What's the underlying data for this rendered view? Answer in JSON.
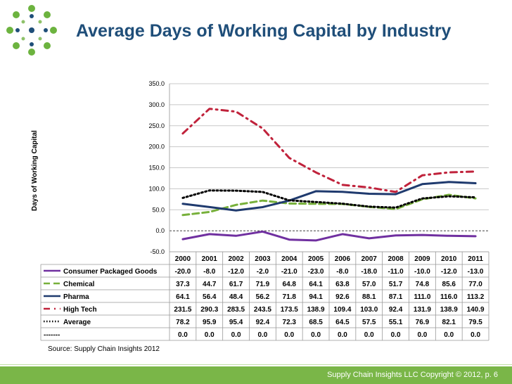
{
  "header": {
    "title": "Average Days of Working Capital by Industry"
  },
  "colors": {
    "title": "#1f4e79",
    "footer_bg": "#7ab648",
    "logo_green": "#6cb33f",
    "logo_blue": "#1f4e79"
  },
  "chart_data": {
    "type": "line",
    "title": "",
    "ylabel": "Days of Working Capital",
    "xlabel": "",
    "ylim": [
      -50,
      350
    ],
    "ytick_labels": [
      "350.0",
      "300.0",
      "250.0",
      "200.0",
      "150.0",
      "100.0",
      "50.0",
      "0.0",
      "-50.0"
    ],
    "grid": true,
    "x": [
      "2000",
      "2001",
      "2002",
      "2003",
      "2004",
      "2005",
      "2006",
      "2007",
      "2008",
      "2009",
      "2010",
      "2011"
    ],
    "series": [
      {
        "name": "Consumer Packaged Goods",
        "color": "#7030a0",
        "dash": "solid",
        "values": [
          -20.0,
          -8.0,
          -12.0,
          -2.0,
          -21.0,
          -23.0,
          -8.0,
          -18.0,
          -11.0,
          -10.0,
          -12.0,
          -13.0
        ],
        "labels": [
          "-20.0",
          "-8.0",
          "-12.0",
          "-2.0",
          "-21.0",
          "-23.0",
          "-8.0",
          "-18.0",
          "-11.0",
          "-10.0",
          "-12.0",
          "-13.0"
        ]
      },
      {
        "name": "Chemical",
        "color": "#77b03a",
        "dash": "dashed",
        "values": [
          37.3,
          44.7,
          61.7,
          71.9,
          64.8,
          64.1,
          63.8,
          57.0,
          51.7,
          74.8,
          85.6,
          77.0
        ],
        "labels": [
          "37.3",
          "44.7",
          "61.7",
          "71.9",
          "64.8",
          "64.1",
          "63.8",
          "57.0",
          "51.7",
          "74.8",
          "85.6",
          "77.0"
        ]
      },
      {
        "name": "Pharma",
        "color": "#1f3a6e",
        "dash": "solid",
        "values": [
          64.1,
          56.4,
          48.4,
          56.2,
          71.8,
          94.1,
          92.6,
          88.1,
          87.1,
          111.0,
          116.0,
          113.2
        ],
        "labels": [
          "64.1",
          "56.4",
          "48.4",
          "56.2",
          "71.8",
          "94.1",
          "92.6",
          "88.1",
          "87.1",
          "111.0",
          "116.0",
          "113.2"
        ]
      },
      {
        "name": "High Tech",
        "color": "#c0223b",
        "dash": "dashdot",
        "values": [
          231.5,
          290.3,
          283.5,
          243.5,
          173.5,
          138.9,
          109.4,
          103.0,
          92.4,
          131.9,
          138.9,
          140.9
        ],
        "labels": [
          "231.5",
          "290.3",
          "283.5",
          "243.5",
          "173.5",
          "138.9",
          "109.4",
          "103.0",
          "92.4",
          "131.9",
          "138.9",
          "140.9"
        ]
      },
      {
        "name": "Average",
        "color": "#000000",
        "dash": "dotted",
        "values": [
          78.2,
          95.9,
          95.4,
          92.4,
          72.3,
          68.5,
          64.5,
          57.5,
          55.1,
          76.9,
          82.1,
          79.5
        ],
        "labels": [
          "78.2",
          "95.9",
          "95.4",
          "92.4",
          "72.3",
          "68.5",
          "64.5",
          "57.5",
          "55.1",
          "76.9",
          "82.1",
          "79.5"
        ]
      },
      {
        "name": "-------",
        "color": "#000000",
        "dash": "none",
        "values": [
          0.0,
          0.0,
          0.0,
          0.0,
          0.0,
          0.0,
          0.0,
          0.0,
          0.0,
          0.0,
          0.0,
          0.0
        ],
        "labels": [
          "0.0",
          "0.0",
          "0.0",
          "0.0",
          "0.0",
          "0.0",
          "0.0",
          "0.0",
          "0.0",
          "0.0",
          "0.0",
          "0.0"
        ]
      }
    ]
  },
  "source": "Source:  Supply Chain Insights 2012",
  "footer": {
    "copyright": "Supply Chain Insights LLC Copyright © 2012, p. 6"
  }
}
